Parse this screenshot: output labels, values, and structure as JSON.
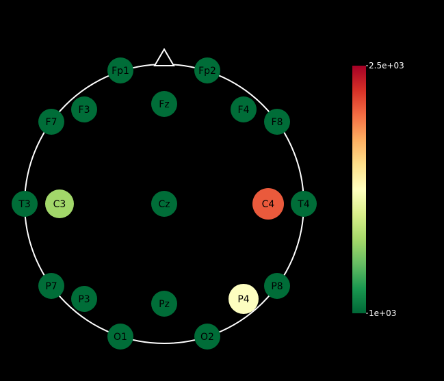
{
  "head": {
    "outline_color": "#ffffff",
    "background": "#000000"
  },
  "electrodes": [
    {
      "label": "Fp1",
      "color": "#006d38"
    },
    {
      "label": "Fp2",
      "color": "#006d38"
    },
    {
      "label": "F7",
      "color": "#006d38"
    },
    {
      "label": "F3",
      "color": "#006d38"
    },
    {
      "label": "Fz",
      "color": "#006d38"
    },
    {
      "label": "F4",
      "color": "#006d38"
    },
    {
      "label": "F8",
      "color": "#006d38"
    },
    {
      "label": "T3",
      "color": "#006d38"
    },
    {
      "label": "C3",
      "color": "#a2d76a"
    },
    {
      "label": "Cz",
      "color": "#006d38"
    },
    {
      "label": "C4",
      "color": "#ea5a3c"
    },
    {
      "label": "T4",
      "color": "#006d38"
    },
    {
      "label": "P7",
      "color": "#006d38"
    },
    {
      "label": "P3",
      "color": "#006d38"
    },
    {
      "label": "Pz",
      "color": "#006d38"
    },
    {
      "label": "P4",
      "color": "#fdfec0"
    },
    {
      "label": "P8",
      "color": "#006d38"
    },
    {
      "label": "O1",
      "color": "#006d38"
    },
    {
      "label": "O2",
      "color": "#006d38"
    }
  ],
  "colorbar": {
    "max_label": "2.5e+03",
    "min_label": "1e+03",
    "colors": [
      "#a50026",
      "#d73027",
      "#f46d43",
      "#fdae61",
      "#fee08b",
      "#ffffbf",
      "#d9ef8b",
      "#a6d96a",
      "#66bd63",
      "#1a9850",
      "#006837"
    ]
  }
}
